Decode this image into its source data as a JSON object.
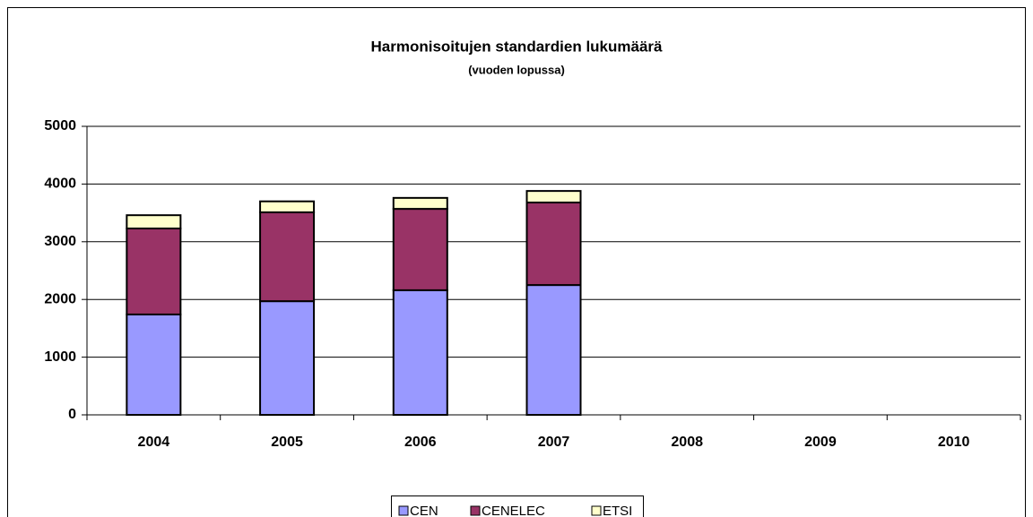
{
  "chart_data": {
    "type": "stacked_bar",
    "title": "Harmonisoitujen standardien lukumäärä",
    "subtitle": "(vuoden lopussa)",
    "categories": [
      "2004",
      "2005",
      "2006",
      "2007",
      "2008",
      "2009",
      "2010"
    ],
    "series": [
      {
        "name": "CEN",
        "color": "#9999ff",
        "values": [
          1740,
          1970,
          2160,
          2250,
          null,
          null,
          null
        ]
      },
      {
        "name": "CENELEC",
        "color": "#993366",
        "values": [
          1490,
          1540,
          1410,
          1430,
          null,
          null,
          null
        ]
      },
      {
        "name": "ETSI",
        "color": "#ffffcc",
        "values": [
          230,
          190,
          190,
          200,
          null,
          null,
          null
        ]
      }
    ],
    "ylim": [
      0,
      5000
    ],
    "yticks": [
      0,
      1000,
      2000,
      3000,
      4000,
      5000
    ],
    "grid": true,
    "legend": "bottom"
  }
}
